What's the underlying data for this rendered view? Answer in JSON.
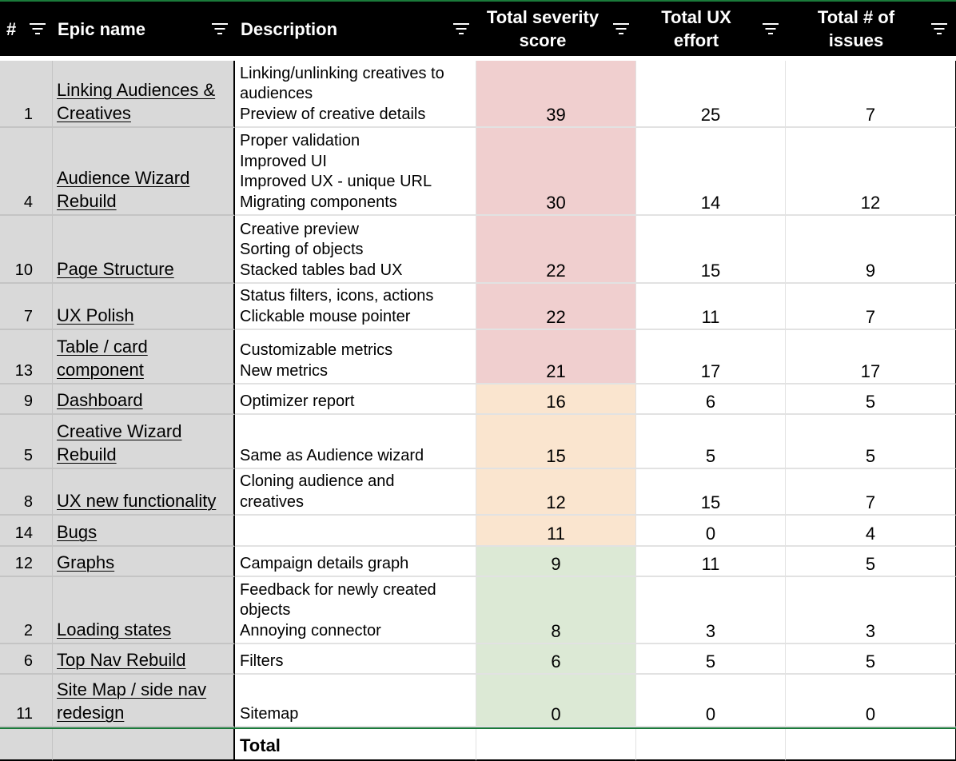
{
  "header": {
    "num": "#",
    "epic": "Epic name",
    "description": "Description",
    "severity": [
      "Total severity",
      "score"
    ],
    "ux_effort": [
      "Total UX",
      "effort"
    ],
    "issues": [
      "Total # of",
      "issues"
    ]
  },
  "rows": [
    {
      "num": "1",
      "epic": [
        "Linking Audiences &",
        "Creatives"
      ],
      "description": [
        "Linking/unlinking creatives to",
        "audiences",
        "Preview of creative details"
      ],
      "severity": "39",
      "ux_effort": "25",
      "issues": "7",
      "severity_color": "#f0cfcf"
    },
    {
      "num": "4",
      "epic": [
        "Audience Wizard",
        "Rebuild"
      ],
      "description": [
        "Proper validation",
        "Improved UI",
        "Improved UX - unique URL",
        "Migrating components"
      ],
      "severity": "30",
      "ux_effort": "14",
      "issues": "12",
      "severity_color": "#f0cfcf"
    },
    {
      "num": "10",
      "epic": [
        "Page Structure"
      ],
      "description": [
        "Creative preview",
        "Sorting of objects",
        "Stacked tables bad UX"
      ],
      "severity": "22",
      "ux_effort": "15",
      "issues": "9",
      "severity_color": "#f0cfcf"
    },
    {
      "num": "7",
      "epic": [
        "UX Polish"
      ],
      "description": [
        "Status filters, icons, actions",
        "Clickable mouse pointer"
      ],
      "severity": "22",
      "ux_effort": "11",
      "issues": "7",
      "severity_color": "#f0cfcf"
    },
    {
      "num": "13",
      "epic": [
        "Table / card",
        "component"
      ],
      "description": [
        "Customizable metrics",
        "New metrics"
      ],
      "severity": "21",
      "ux_effort": "17",
      "issues": "17",
      "severity_color": "#f0cfcf"
    },
    {
      "num": "9",
      "epic": [
        "Dashboard"
      ],
      "description": [
        "Optimizer report"
      ],
      "severity": "16",
      "ux_effort": "6",
      "issues": "5",
      "severity_color": "#fae5cf"
    },
    {
      "num": "5",
      "epic": [
        "Creative Wizard",
        "Rebuild"
      ],
      "description": [
        "Same as Audience wizard"
      ],
      "severity": "15",
      "ux_effort": "5",
      "issues": "5",
      "severity_color": "#fae5cf"
    },
    {
      "num": "8",
      "epic": [
        "UX new functionality"
      ],
      "description": [
        "Cloning audience and",
        "creatives"
      ],
      "severity": "12",
      "ux_effort": "15",
      "issues": "7",
      "severity_color": "#fae5cf"
    },
    {
      "num": "14",
      "epic": [
        "Bugs"
      ],
      "description": [],
      "severity": "11",
      "ux_effort": "0",
      "issues": "4",
      "severity_color": "#fae5cf"
    },
    {
      "num": "12",
      "epic": [
        "Graphs"
      ],
      "description": [
        "Campaign details graph"
      ],
      "severity": "9",
      "ux_effort": "11",
      "issues": "5",
      "severity_color": "#dce9d5"
    },
    {
      "num": "2",
      "epic": [
        "Loading states"
      ],
      "description": [
        "Feedback for newly created",
        "objects",
        "Annoying connector"
      ],
      "severity": "8",
      "ux_effort": "3",
      "issues": "3",
      "severity_color": "#dce9d5"
    },
    {
      "num": "6",
      "epic": [
        "Top Nav Rebuild"
      ],
      "description": [
        "Filters"
      ],
      "severity": "6",
      "ux_effort": "5",
      "issues": "5",
      "severity_color": "#dce9d5"
    },
    {
      "num": "11",
      "epic": [
        "Site Map / side nav",
        "redesign"
      ],
      "description": [
        "Sitemap"
      ],
      "severity": "0",
      "ux_effort": "0",
      "issues": "0",
      "severity_color": "#dce9d5"
    }
  ],
  "total": {
    "label": "Total"
  },
  "colors": {
    "header_bg": "#000000",
    "header_border": "#1a7a3a",
    "frozen_bg": "#d9d9d9",
    "high": "#f0cfcf",
    "medium": "#fae5cf",
    "low": "#dce9d5"
  }
}
